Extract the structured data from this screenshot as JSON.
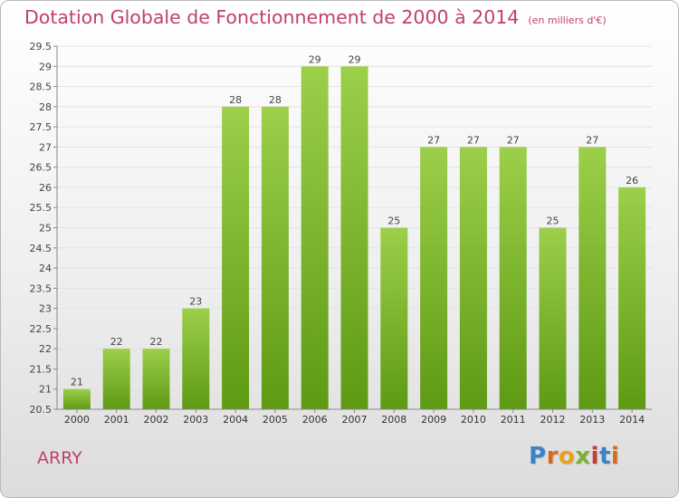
{
  "header": {
    "title": "Dotation Globale de Fonctionnement de 2000 à 2014",
    "subtitle": "(en milliers d'€)"
  },
  "footer": {
    "region": "ARRY",
    "logo": "Proxiti"
  },
  "colors": {
    "title": "#c0416b",
    "bar_top": "#9ccf4a",
    "bar_bottom": "#5e9a14",
    "grid": "#e3e3e3",
    "logo_letters": [
      "#3a83c8",
      "#d86a1e",
      "#e8a21e",
      "#7bb232",
      "#c83a3a",
      "#3a83c8",
      "#d86a1e"
    ]
  },
  "chart_data": {
    "type": "bar",
    "categories": [
      "2000",
      "2001",
      "2002",
      "2003",
      "2004",
      "2005",
      "2006",
      "2007",
      "2008",
      "2009",
      "2010",
      "2011",
      "2012",
      "2013",
      "2014"
    ],
    "values": [
      21,
      22,
      22,
      23,
      28,
      28,
      29,
      29,
      25,
      27,
      27,
      27,
      25,
      27,
      26
    ],
    "value_labels": [
      "21",
      "22",
      "22",
      "23",
      "28",
      "28",
      "29",
      "29",
      "25",
      "27",
      "27",
      "27",
      "25",
      "27",
      "26"
    ],
    "title": "Dotation Globale de Fonctionnement de 2000 à 2014",
    "subtitle": "(en milliers d'€)",
    "xlabel": "",
    "ylabel": "",
    "ylim": [
      20.5,
      29.5
    ],
    "yticks": [
      "20.5",
      "21",
      "21.5",
      "22",
      "22.5",
      "23",
      "23.5",
      "24",
      "24.5",
      "25",
      "25.5",
      "26",
      "26.5",
      "27",
      "27.5",
      "28",
      "28.5",
      "29",
      "29.5"
    ],
    "grid": true,
    "legend": "none"
  }
}
